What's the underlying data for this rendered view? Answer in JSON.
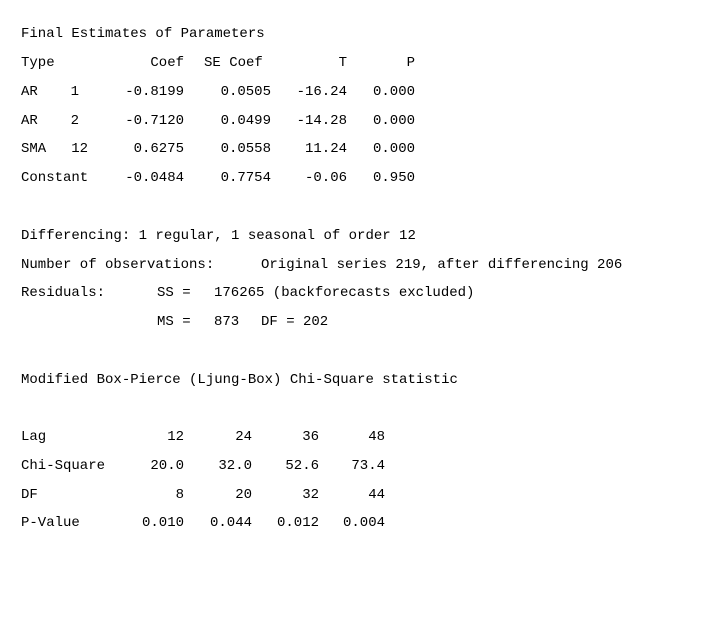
{
  "heading": "Final Estimates of Parameters",
  "param_header": {
    "type": "Type",
    "coef": "Coef",
    "se_coef": "SE Coef",
    "t": "T",
    "p": "P"
  },
  "params": [
    {
      "type": "AR",
      "lag": "1",
      "coef": "-0.8199",
      "se_coef": "0.0505",
      "t": "-16.24",
      "p": "0.000"
    },
    {
      "type": "AR",
      "lag": "2",
      "coef": "-0.7120",
      "se_coef": "0.0499",
      "t": "-14.28",
      "p": "0.000"
    },
    {
      "type": "SMA",
      "lag": "12",
      "coef": "0.6275",
      "se_coef": "0.0558",
      "t": "11.24",
      "p": "0.000"
    },
    {
      "type": "Constant",
      "lag": "",
      "coef": "-0.0484",
      "se_coef": "0.7754",
      "t": "-0.06",
      "p": "0.950"
    }
  ],
  "differencing": "Differencing: 1 regular, 1 seasonal of order 12",
  "observations": {
    "label": "Number of observations:",
    "value": "Original series 219, after differencing 206"
  },
  "residuals": {
    "label": "Residuals:",
    "ss_label": "SS =",
    "ss_value": "176265 (backforecasts excluded)",
    "ms_label": "MS =",
    "ms_value": "873",
    "df_text": "DF = 202"
  },
  "ljung_title": "Modified Box-Pierce (Ljung-Box) Chi-Square statistic",
  "ljung_rows": [
    {
      "label": "Lag",
      "values": [
        "12",
        "24",
        "36",
        "48"
      ]
    },
    {
      "label": "Chi-Square",
      "values": [
        "20.0",
        "32.0",
        "52.6",
        "73.4"
      ]
    },
    {
      "label": "DF",
      "values": [
        "8",
        "20",
        "32",
        "44"
      ]
    },
    {
      "label": "P-Value",
      "values": [
        "0.010",
        "0.044",
        "0.012",
        "0.004"
      ]
    }
  ]
}
